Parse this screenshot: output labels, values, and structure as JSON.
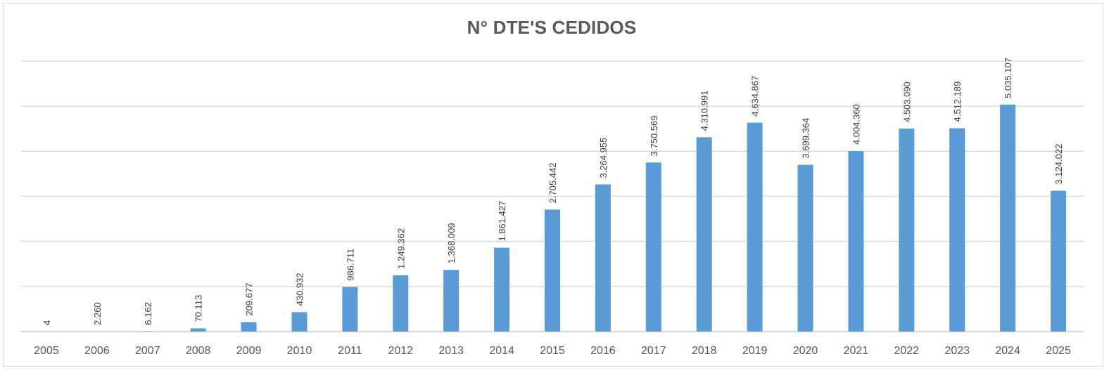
{
  "chart_data": {
    "type": "bar",
    "title": "N° DTE'S CEDIDOS",
    "xlabel": "",
    "ylabel": "",
    "ylim": [
      0,
      6000000
    ],
    "y_gridline_step": 1000000,
    "y_tick_labels_shown": false,
    "grid": true,
    "legend": "none",
    "bar_color": "#5b9bd5",
    "categories": [
      "2005",
      "2006",
      "2007",
      "2008",
      "2009",
      "2010",
      "2011",
      "2012",
      "2013",
      "2014",
      "2015",
      "2016",
      "2017",
      "2018",
      "2019",
      "2020",
      "2021",
      "2022",
      "2023",
      "2024",
      "2025"
    ],
    "values": [
      4,
      2260,
      6162,
      70113,
      209677,
      430932,
      986711,
      1249362,
      1368009,
      1861427,
      2705442,
      3264955,
      3750569,
      4310991,
      4634867,
      3699364,
      4004360,
      4503090,
      4512189,
      5035107,
      3124022
    ],
    "data_labels": [
      "4",
      "2.260",
      "6.162",
      "70.113",
      "209.677",
      "430.932",
      "986.711",
      "1.249.362",
      "1.368.009",
      "1.861.427",
      "2.705.442",
      "3.264.955",
      "3.750.569",
      "4.310.991",
      "4.634.867",
      "3.699.364",
      "4.004.360",
      "4.503.090",
      "4.512.189",
      "5.035.107",
      "3.124.022"
    ]
  }
}
